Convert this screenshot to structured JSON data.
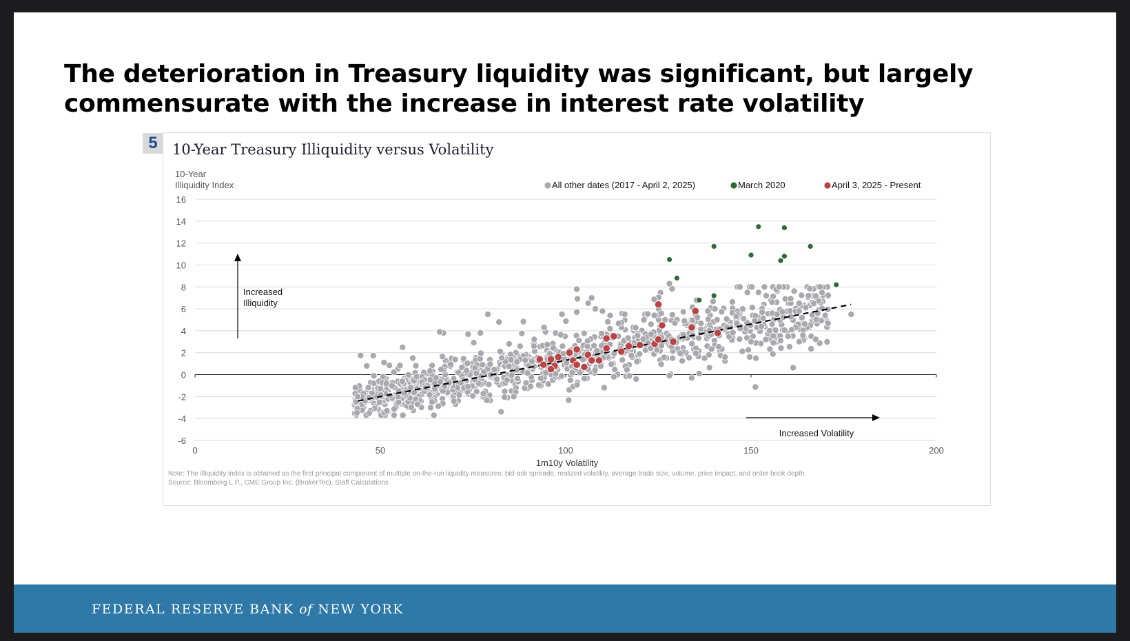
{
  "slide": {
    "title": "The deterioration in Treasury liquidity was significant, but largely commensurate with the increase in interest rate volatility",
    "chart_number": "5",
    "footer": {
      "org_part1": "FEDERAL RESERVE BANK",
      "org_of": "of",
      "org_part2": "NEW YORK"
    }
  },
  "chart_data": {
    "type": "scatter",
    "title": "10-Year Treasury Illiquidity versus Volatility",
    "ylabel_lines": [
      "10-Year",
      "Illiquidity Index"
    ],
    "xlabel": "1m10y Volatility",
    "xlim": [
      0,
      200
    ],
    "ylim": [
      -6,
      16
    ],
    "xticks": [
      0,
      50,
      100,
      150,
      200
    ],
    "yticks": [
      -6,
      -4,
      -2,
      0,
      2,
      4,
      6,
      8,
      10,
      12,
      14,
      16
    ],
    "grid": true,
    "legend_position": "top-right",
    "legend": [
      {
        "label": "All other dates (2017 - April 2, 2025)",
        "color": "#a8a8ae"
      },
      {
        "label": "March 2020",
        "color": "#2e6b34"
      },
      {
        "label": "April 3, 2025 - Present",
        "color": "#b84444"
      }
    ],
    "annotations": {
      "up_arrow": {
        "lines": [
          "Increased",
          "Illiquidity"
        ]
      },
      "right_arrow": {
        "text": "Increased Volatility"
      }
    },
    "trend_line": {
      "style": "dashed",
      "x": [
        44,
        177
      ],
      "y": [
        -2.4,
        6.4
      ]
    },
    "background_cloud": {
      "description_count": 1100,
      "x_range": [
        43,
        178
      ],
      "y_range": [
        -3.7,
        8
      ]
    },
    "series": [
      {
        "name": "March 2020",
        "color": "#2e6b34",
        "points": [
          [
            128,
            10.5
          ],
          [
            130,
            8.8
          ],
          [
            136,
            6.8
          ],
          [
            140,
            11.7
          ],
          [
            140,
            7.2
          ],
          [
            150,
            10.9
          ],
          [
            152,
            13.5
          ],
          [
            158,
            10.4
          ],
          [
            159,
            10.8
          ],
          [
            159,
            13.4
          ],
          [
            166,
            11.7
          ],
          [
            173,
            8.2
          ]
        ]
      },
      {
        "name": "April 3, 2025 - Present",
        "color": "#b84444",
        "points": [
          [
            125,
            6.4
          ],
          [
            135,
            5.8
          ],
          [
            126,
            4.5
          ],
          [
            134,
            4.3
          ],
          [
            141,
            3.8
          ],
          [
            93,
            1.4
          ],
          [
            94,
            0.9
          ],
          [
            96,
            1.4
          ],
          [
            97,
            0.8
          ],
          [
            98,
            1.6
          ],
          [
            96,
            0.5
          ],
          [
            101,
            2.0
          ],
          [
            102,
            1.3
          ],
          [
            103,
            2.3
          ],
          [
            103,
            0.9
          ],
          [
            105,
            0.7
          ],
          [
            106,
            1.8
          ],
          [
            107,
            1.3
          ],
          [
            109,
            1.3
          ],
          [
            111,
            2.4
          ],
          [
            111,
            3.3
          ],
          [
            113,
            3.5
          ],
          [
            115,
            2.1
          ],
          [
            117,
            2.6
          ],
          [
            120,
            2.7
          ],
          [
            124,
            2.8
          ],
          [
            125,
            3.2
          ],
          [
            129,
            3.0
          ]
        ]
      }
    ],
    "note": "Note: The illiquidity index is obtained as the first principal component of multiple on-the-run liquidity measures: bid-ask spreads, realized volatility, average trade size, volume, price impact, and order book depth.",
    "source": "Source: Bloomberg L.P., CME Group Inc. (BrokerTec), Staff Calculations"
  }
}
